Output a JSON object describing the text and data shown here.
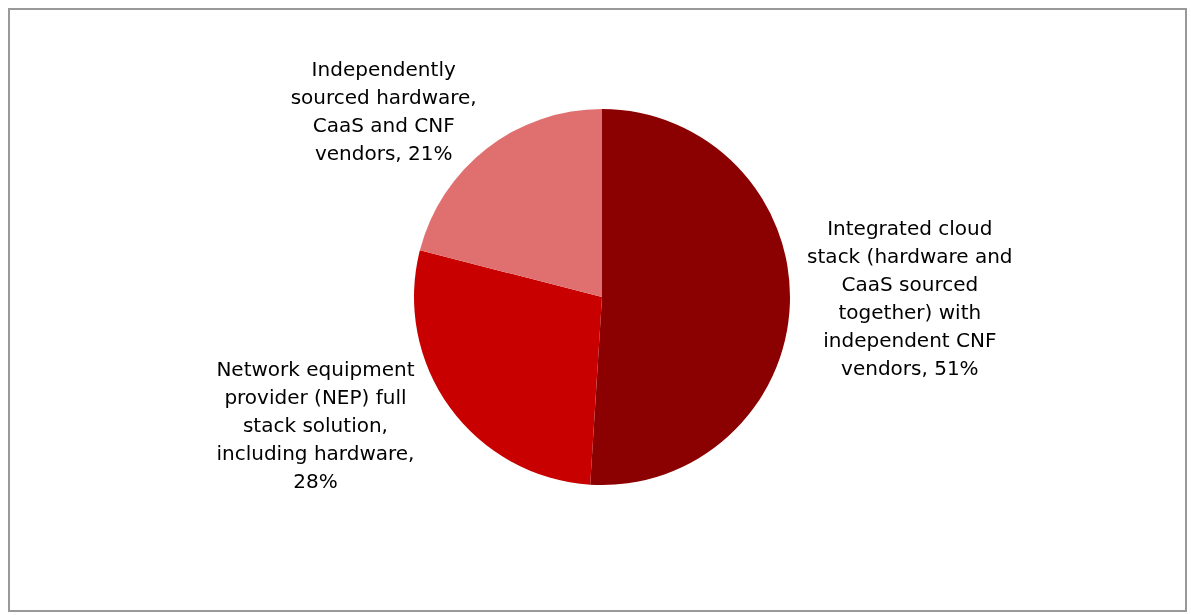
{
  "chart_data": {
    "type": "pie",
    "categories": [
      "Integrated cloud stack (hardware and CaaS sourced together) with independent CNF vendors, 51%",
      "Network equipment provider (NEP) full stack solution, including hardware, 28%",
      "Independently sourced hardware, CaaS and CNF vendors, 21%"
    ],
    "values": [
      51,
      28,
      21
    ],
    "colors": [
      "#8b0000",
      "#c80000",
      "#e07070"
    ],
    "legend": false
  }
}
